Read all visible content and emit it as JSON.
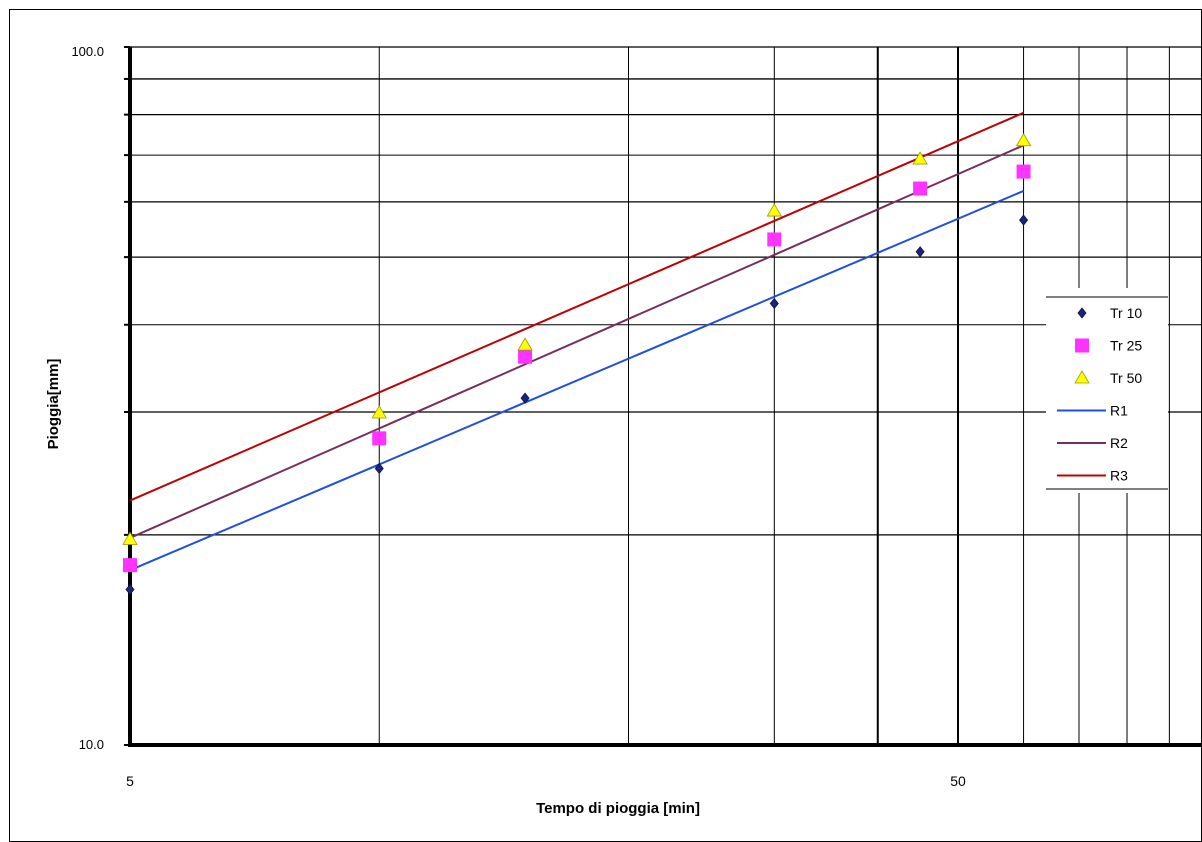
{
  "chart_data": {
    "type": "scatter",
    "title": "",
    "xlabel": "Tempo di pioggia [min]",
    "ylabel": "Pioggia[mm]",
    "x_scale": "log",
    "y_scale": "log",
    "xlim": [
      5,
      100
    ],
    "ylim": [
      10,
      100
    ],
    "x_tick_labels": [
      "5",
      "50"
    ],
    "y_tick_labels": [
      "10.0",
      "100.0"
    ],
    "grid": true,
    "legend_position": "right",
    "series": [
      {
        "name": "Tr 10",
        "kind": "points",
        "marker": "diamond",
        "color": "#1a237e",
        "x": [
          5,
          10,
          15,
          30,
          45,
          60
        ],
        "y": [
          16.7,
          24.9,
          31.4,
          42.9,
          50.9,
          56.5
        ]
      },
      {
        "name": "Tr 25",
        "kind": "points",
        "marker": "square",
        "color": "#ff33ff",
        "x": [
          5,
          10,
          15,
          30,
          45,
          60
        ],
        "y": [
          18.1,
          27.5,
          36.0,
          53.0,
          62.7,
          66.3
        ]
      },
      {
        "name": "Tr 50",
        "kind": "points",
        "marker": "triangle",
        "color": "#ffff00",
        "x": [
          5,
          10,
          15,
          30,
          45,
          60
        ],
        "y": [
          19.7,
          29.9,
          37.4,
          58.2,
          69.1,
          73.4
        ]
      },
      {
        "name": "R1",
        "kind": "line",
        "color": "#1f4fe0",
        "x": [
          5,
          60
        ],
        "y": [
          17.8,
          62.2
        ]
      },
      {
        "name": "R2",
        "kind": "line",
        "color": "#7b2d5a",
        "x": [
          5,
          60
        ],
        "y": [
          19.8,
          72.3
        ]
      },
      {
        "name": "R3",
        "kind": "line",
        "color": "#c00000",
        "x": [
          5,
          60
        ],
        "y": [
          22.4,
          80.5
        ]
      }
    ]
  }
}
